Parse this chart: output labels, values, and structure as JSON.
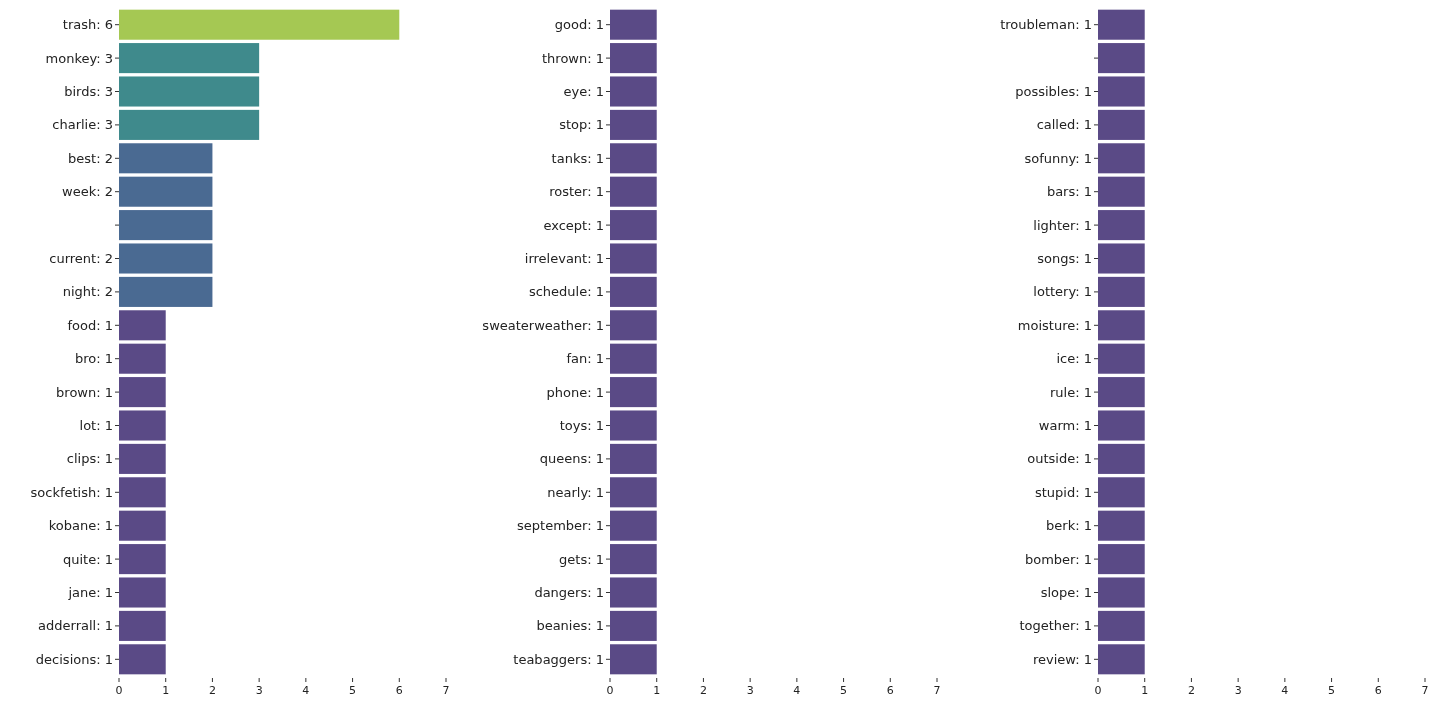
{
  "chart_data": [
    {
      "type": "bar",
      "orientation": "horizontal",
      "categories": [
        "trash: 6",
        "monkey: 3",
        "birds: 3",
        "charlie: 3",
        "best: 2",
        "week: 2",
        null,
        "current: 2",
        "night: 2",
        "food: 1",
        "bro: 1",
        "brown: 1",
        "lot: 1",
        "clips: 1",
        "sockfetish: 1",
        "kobane: 1",
        "quite: 1",
        "jane: 1",
        "adderrall: 1",
        "decisions: 1"
      ],
      "values": [
        6,
        3,
        3,
        3,
        2,
        2,
        2,
        2,
        2,
        1,
        1,
        1,
        1,
        1,
        1,
        1,
        1,
        1,
        1,
        1
      ],
      "colors": [
        "#a5c853",
        "#3f8a8c",
        "#3f8a8c",
        "#3f8a8c",
        "#4a6a92",
        "#4a6a92",
        "#4a6a92",
        "#4a6a92",
        "#4a6a92",
        "#5a4a86",
        "#5a4a86",
        "#5a4a86",
        "#5a4a86",
        "#5a4a86",
        "#5a4a86",
        "#5a4a86",
        "#5a4a86",
        "#5a4a86",
        "#5a4a86",
        "#5a4a86"
      ],
      "xlim": [
        0,
        7
      ],
      "xticks": [
        0,
        1,
        2,
        3,
        4,
        5,
        6,
        7
      ]
    },
    {
      "type": "bar",
      "orientation": "horizontal",
      "categories": [
        "good: 1",
        "thrown: 1",
        "eye: 1",
        "stop: 1",
        "tanks: 1",
        "roster: 1",
        "except: 1",
        "irrelevant: 1",
        "schedule: 1",
        "sweaterweather: 1",
        "fan: 1",
        "phone: 1",
        "toys: 1",
        "queens: 1",
        "nearly: 1",
        "september: 1",
        "gets: 1",
        "dangers: 1",
        "beanies: 1",
        "teabaggers: 1"
      ],
      "values": [
        1,
        1,
        1,
        1,
        1,
        1,
        1,
        1,
        1,
        1,
        1,
        1,
        1,
        1,
        1,
        1,
        1,
        1,
        1,
        1
      ],
      "colors": [
        "#5a4a86",
        "#5a4a86",
        "#5a4a86",
        "#5a4a86",
        "#5a4a86",
        "#5a4a86",
        "#5a4a86",
        "#5a4a86",
        "#5a4a86",
        "#5a4a86",
        "#5a4a86",
        "#5a4a86",
        "#5a4a86",
        "#5a4a86",
        "#5a4a86",
        "#5a4a86",
        "#5a4a86",
        "#5a4a86",
        "#5a4a86",
        "#5a4a86"
      ],
      "xlim": [
        0,
        7
      ],
      "xticks": [
        0,
        1,
        2,
        3,
        4,
        5,
        6,
        7
      ]
    },
    {
      "type": "bar",
      "orientation": "horizontal",
      "categories": [
        "troubleman: 1",
        null,
        "possibles: 1",
        "called: 1",
        "sofunny: 1",
        "bars: 1",
        "lighter: 1",
        "songs: 1",
        "lottery: 1",
        "moisture: 1",
        "ice: 1",
        "rule: 1",
        "warm: 1",
        "outside: 1",
        "stupid: 1",
        "berk: 1",
        "bomber: 1",
        "slope: 1",
        "together: 1",
        "review: 1"
      ],
      "values": [
        1,
        1,
        1,
        1,
        1,
        1,
        1,
        1,
        1,
        1,
        1,
        1,
        1,
        1,
        1,
        1,
        1,
        1,
        1,
        1
      ],
      "colors": [
        "#5a4a86",
        "#5a4a86",
        "#5a4a86",
        "#5a4a86",
        "#5a4a86",
        "#5a4a86",
        "#5a4a86",
        "#5a4a86",
        "#5a4a86",
        "#5a4a86",
        "#5a4a86",
        "#5a4a86",
        "#5a4a86",
        "#5a4a86",
        "#5a4a86",
        "#5a4a86",
        "#5a4a86",
        "#5a4a86",
        "#5a4a86",
        "#5a4a86"
      ],
      "xlim": [
        0,
        7
      ],
      "xticks": [
        0,
        1,
        2,
        3,
        4,
        5,
        6,
        7
      ]
    }
  ]
}
